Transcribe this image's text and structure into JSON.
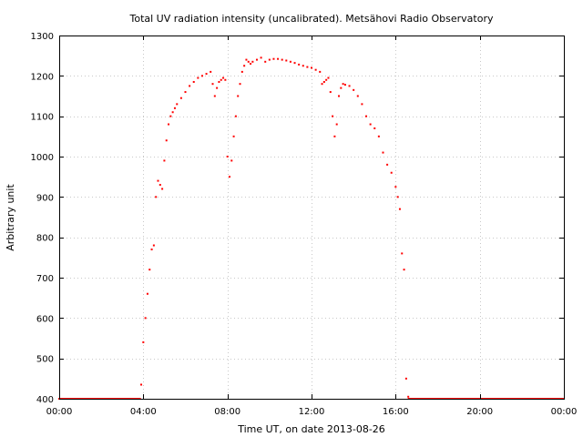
{
  "chart_data": {
    "type": "scatter",
    "title": "Total UV radiation intensity (uncalibrated). Metsähovi Radio Observatory",
    "xlabel": "Time UT, on date 2013-08-26",
    "ylabel": "Arbitrary unit",
    "xlim": [
      0,
      24
    ],
    "ylim": [
      400,
      1300
    ],
    "x_ticks": [
      0,
      4,
      8,
      12,
      16,
      20,
      24
    ],
    "x_tick_labels": [
      "00:00",
      "04:00",
      "08:00",
      "12:00",
      "16:00",
      "20:00",
      "00:00"
    ],
    "y_ticks": [
      400,
      500,
      600,
      700,
      800,
      900,
      1000,
      1100,
      1200,
      1300
    ],
    "y_tick_labels": [
      "400",
      "500",
      "600",
      "700",
      "800",
      "900",
      "1000",
      "1100",
      "1200",
      "1300"
    ],
    "grid": true,
    "marker_color": "#ff0000",
    "series": [
      {
        "x": [
          3.9,
          4.0,
          4.1,
          4.2,
          4.3,
          4.4,
          4.5,
          4.6,
          4.7,
          4.8,
          4.9,
          5.0,
          5.1,
          5.2,
          5.3,
          5.4,
          5.5,
          5.6,
          5.8,
          6.0,
          6.2,
          6.4,
          6.6,
          6.8,
          7.0,
          7.2,
          7.3,
          7.4,
          7.5,
          7.6,
          7.7,
          7.8,
          7.9,
          8.0,
          8.1,
          8.2,
          8.3,
          8.4,
          8.5,
          8.6,
          8.7,
          8.8,
          8.9,
          9.0,
          9.1,
          9.2,
          9.4,
          9.6,
          9.8,
          10.0,
          10.2,
          10.4,
          10.6,
          10.8,
          11.0,
          11.2,
          11.4,
          11.6,
          11.8,
          12.0,
          12.2,
          12.4,
          12.5,
          12.6,
          12.7,
          12.8,
          12.9,
          13.0,
          13.1,
          13.2,
          13.3,
          13.4,
          13.5,
          13.6,
          13.8,
          14.0,
          14.2,
          14.4,
          14.6,
          14.8,
          15.0,
          15.2,
          15.4,
          15.6,
          15.8,
          16.0,
          16.1,
          16.2,
          16.3,
          16.4,
          16.5,
          16.6
        ],
        "y": [
          435,
          540,
          600,
          660,
          720,
          770,
          780,
          900,
          940,
          930,
          920,
          990,
          1040,
          1080,
          1100,
          1110,
          1120,
          1130,
          1145,
          1160,
          1175,
          1185,
          1195,
          1200,
          1205,
          1210,
          1180,
          1150,
          1170,
          1185,
          1190,
          1195,
          1190,
          1000,
          950,
          990,
          1050,
          1100,
          1150,
          1180,
          1210,
          1225,
          1240,
          1235,
          1230,
          1235,
          1240,
          1245,
          1235,
          1240,
          1242,
          1242,
          1240,
          1238,
          1235,
          1232,
          1228,
          1225,
          1222,
          1220,
          1215,
          1210,
          1180,
          1185,
          1190,
          1195,
          1160,
          1100,
          1050,
          1080,
          1150,
          1170,
          1180,
          1178,
          1175,
          1165,
          1150,
          1130,
          1100,
          1080,
          1070,
          1050,
          1010,
          980,
          960,
          925,
          900,
          870,
          760,
          720,
          450,
          405
        ]
      }
    ],
    "baseline_value": 400
  }
}
